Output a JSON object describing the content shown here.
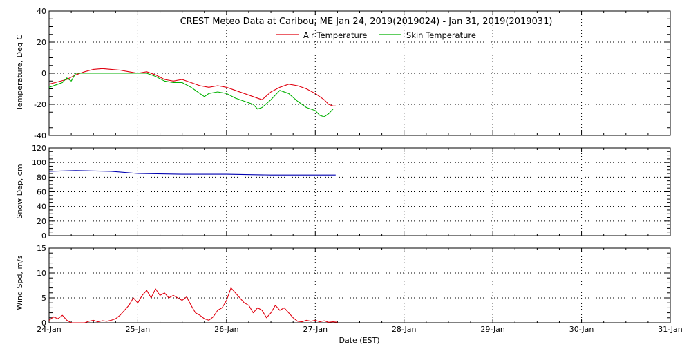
{
  "title": "CREST Meteo Data at Caribou, ME   Jan 24, 2019(2019024) - Jan 31, 2019(2019031)",
  "xlabel": "Date (EST)",
  "colors": {
    "air_temp": "#e0000f",
    "skin_temp": "#00b000",
    "snow_depth": "#0000b0",
    "wind_speed": "#e0000f",
    "grid": "#000000",
    "background": "#ffffff"
  },
  "chart_data": [
    {
      "type": "line",
      "title": "CREST Meteo Data at Caribou, ME   Jan 24, 2019(2019024) - Jan 31, 2019(2019031)",
      "xlabel": "",
      "ylabel": "Temperature, Deg C",
      "xlim": [
        0,
        7
      ],
      "ylim": [
        -40,
        40
      ],
      "x_tick_labels": [
        "24-Jan",
        "25-Jan",
        "26-Jan",
        "27-Jan",
        "28-Jan",
        "29-Jan",
        "30-Jan",
        "31-Jan"
      ],
      "y_ticks": [
        -40,
        -20,
        0,
        20,
        40
      ],
      "grid": true,
      "legend_position": "top-center",
      "series": [
        {
          "name": "Air Temperature",
          "color": "#e0000f",
          "x": [
            0,
            0.1,
            0.2,
            0.3,
            0.4,
            0.5,
            0.6,
            0.7,
            0.8,
            0.9,
            1.0,
            1.1,
            1.2,
            1.3,
            1.4,
            1.5,
            1.6,
            1.7,
            1.8,
            1.9,
            2.0,
            2.1,
            2.2,
            2.3,
            2.4,
            2.5,
            2.6,
            2.7,
            2.8,
            2.9,
            3.0,
            3.1,
            3.15,
            3.2,
            3.23
          ],
          "y": [
            -7,
            -5.5,
            -4,
            -1,
            1,
            2.5,
            3,
            2.5,
            2,
            1,
            0,
            1,
            -1,
            -4,
            -5,
            -4,
            -6,
            -8,
            -9,
            -8,
            -9,
            -11,
            -13,
            -15,
            -17,
            -12,
            -9,
            -7,
            -8,
            -10,
            -13,
            -17,
            -20,
            -21,
            -21
          ]
        },
        {
          "name": "Skin Temperature",
          "color": "#00b000",
          "x": [
            0,
            0.1,
            0.15,
            0.2,
            0.25,
            0.3,
            0.4,
            0.6,
            0.8,
            1.0,
            1.1,
            1.2,
            1.3,
            1.4,
            1.5,
            1.6,
            1.7,
            1.75,
            1.8,
            1.9,
            2.0,
            2.1,
            2.2,
            2.3,
            2.35,
            2.4,
            2.5,
            2.6,
            2.7,
            2.8,
            2.9,
            3.0,
            3.05,
            3.1,
            3.15,
            3.2
          ],
          "y": [
            -9,
            -7,
            -6,
            -3,
            -5,
            0,
            0,
            0,
            0,
            0,
            0,
            -2,
            -5,
            -6,
            -6,
            -9,
            -13,
            -15,
            -13,
            -12,
            -13,
            -16,
            -18,
            -20,
            -23,
            -22,
            -17,
            -11,
            -13,
            -18,
            -22,
            -24,
            -27,
            -28,
            -26,
            -23
          ]
        }
      ]
    },
    {
      "type": "line",
      "title": "",
      "xlabel": "",
      "ylabel": "Snow Dep, cm",
      "xlim": [
        0,
        7
      ],
      "ylim": [
        0,
        120
      ],
      "y_ticks": [
        0,
        20,
        40,
        60,
        80,
        100,
        120
      ],
      "grid": true,
      "series": [
        {
          "name": "",
          "color": "#0000b0",
          "x": [
            0,
            0.3,
            0.7,
            1.0,
            1.5,
            2.0,
            2.5,
            3.0,
            3.23
          ],
          "y": [
            88,
            89,
            88,
            85,
            84,
            84,
            83,
            83,
            83
          ]
        }
      ]
    },
    {
      "type": "line",
      "title": "",
      "xlabel": "Date (EST)",
      "ylabel": "Wind Spd, m/s",
      "xlim": [
        0,
        7
      ],
      "ylim": [
        0,
        15
      ],
      "y_ticks": [
        0,
        5,
        10,
        15
      ],
      "x_tick_labels": [
        "24-Jan",
        "25-Jan",
        "26-Jan",
        "27-Jan",
        "28-Jan",
        "29-Jan",
        "30-Jan",
        "31-Jan"
      ],
      "grid": true,
      "series": [
        {
          "name": "",
          "color": "#e0000f",
          "x": [
            0,
            0.05,
            0.1,
            0.15,
            0.2,
            0.25,
            0.3,
            0.35,
            0.4,
            0.45,
            0.5,
            0.55,
            0.6,
            0.65,
            0.7,
            0.75,
            0.8,
            0.85,
            0.9,
            0.95,
            1.0,
            1.05,
            1.1,
            1.15,
            1.2,
            1.25,
            1.3,
            1.35,
            1.4,
            1.45,
            1.5,
            1.55,
            1.6,
            1.65,
            1.7,
            1.75,
            1.8,
            1.85,
            1.9,
            1.95,
            2.0,
            2.05,
            2.1,
            2.15,
            2.2,
            2.25,
            2.3,
            2.35,
            2.4,
            2.45,
            2.5,
            2.55,
            2.6,
            2.65,
            2.7,
            2.75,
            2.8,
            2.85,
            2.9,
            2.95,
            3.0,
            3.05,
            3.1,
            3.15,
            3.2,
            3.25
          ],
          "y": [
            0.5,
            1.2,
            0.8,
            1.5,
            0.5,
            0,
            0,
            0,
            0,
            0.3,
            0.5,
            0.2,
            0.4,
            0.3,
            0.5,
            0.8,
            1.5,
            2.5,
            3.5,
            5.0,
            4.0,
            5.5,
            6.5,
            5.0,
            6.8,
            5.5,
            6.0,
            5.0,
            5.5,
            5.0,
            4.5,
            5.2,
            3.5,
            2.0,
            1.5,
            0.8,
            0.5,
            1.2,
            2.5,
            3.0,
            4.5,
            7.0,
            6.0,
            5.0,
            4.0,
            3.5,
            2.0,
            3.0,
            2.5,
            1.0,
            2.0,
            3.5,
            2.5,
            3.0,
            2.0,
            1.0,
            0.3,
            0.2,
            0.5,
            0.3,
            0.5,
            0.2,
            0.4,
            0.1,
            0.2,
            0.1
          ]
        }
      ]
    }
  ]
}
